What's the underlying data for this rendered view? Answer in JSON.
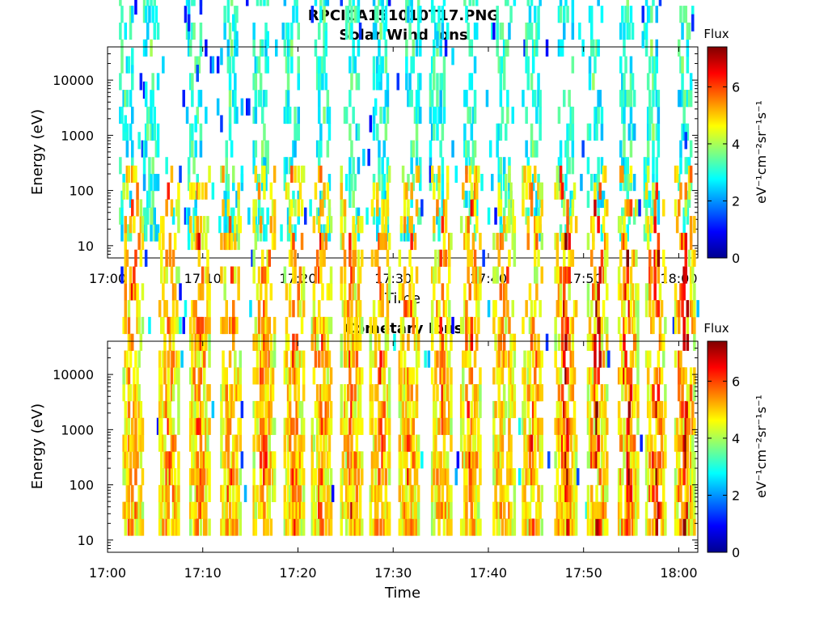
{
  "figure_title": "RPCICA151010T17.PNG",
  "chart_data": [
    {
      "type": "heatmap",
      "title": "Solar Wind Ions",
      "xlabel": "Time",
      "ylabel": "Energy (eV)",
      "x_ticks": [
        "17:00",
        "17:10",
        "17:20",
        "17:30",
        "17:40",
        "17:50",
        "18:00"
      ],
      "x_range": [
        "17:00",
        "18:02"
      ],
      "y_scale": "log",
      "y_ticks": [
        10,
        100,
        1000,
        10000
      ],
      "y_range": [
        6,
        40000
      ],
      "colorbar": {
        "title": "Flux",
        "label": "eV⁻¹cm⁻²sr⁻¹s⁻¹",
        "ticks": [
          0,
          2,
          4,
          6
        ],
        "range": [
          0,
          7.4
        ],
        "colormap": "jet"
      },
      "burst_minutes": [
        1.8,
        4.5,
        9.0,
        12.8,
        16.0,
        19.2,
        22.5,
        25.5,
        28.5,
        32.0,
        34.5,
        38.0,
        41.5,
        44.5,
        48.0,
        51.0,
        54.5,
        57.0,
        60.5
      ],
      "typical_flux": 2.8,
      "peak_flux": 3.6
    },
    {
      "type": "heatmap",
      "title": "Cometary Ions",
      "xlabel": "Time",
      "ylabel": "Energy (eV)",
      "x_ticks": [
        "17:00",
        "17:10",
        "17:20",
        "17:30",
        "17:40",
        "17:50",
        "18:00"
      ],
      "x_range": [
        "17:00",
        "18:02"
      ],
      "y_scale": "log",
      "y_ticks": [
        10,
        100,
        1000,
        10000
      ],
      "y_range": [
        6,
        40000
      ],
      "colorbar": {
        "title": "Flux",
        "label": "eV⁻¹cm⁻²sr⁻¹s⁻¹",
        "ticks": [
          0,
          2,
          4,
          6
        ],
        "range": [
          0,
          7.4
        ],
        "colormap": "jet"
      },
      "burst_minutes": [
        2.5,
        6.3,
        9.5,
        12.8,
        16.3,
        19.5,
        22.3,
        25.5,
        28.5,
        31.5,
        35.0,
        38.0,
        41.5,
        44.5,
        48.0,
        51.3,
        54.5,
        57.5,
        60.5
      ],
      "typical_flux": 4.5,
      "peak_flux": 6.8
    }
  ]
}
